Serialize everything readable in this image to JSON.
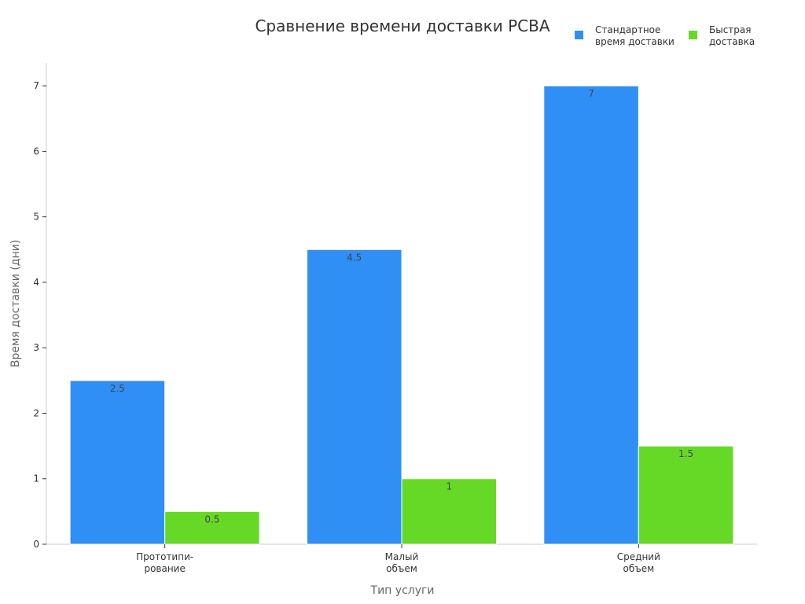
{
  "chart_data": {
    "type": "bar",
    "title": "Сравнение времени доставки PCBA",
    "xlabel": "Тип услуги",
    "ylabel": "Время доставки (дни)",
    "categories": [
      [
        "Прототипи-",
        "рование"
      ],
      [
        "Малый",
        "объем"
      ],
      [
        "Средний",
        "объем"
      ]
    ],
    "series": [
      {
        "name": [
          "Стандартное",
          "время доставки"
        ],
        "values": [
          2.5,
          4.5,
          7
        ],
        "color": "#2f8ff5"
      },
      {
        "name": [
          "Быстрая",
          "доставка"
        ],
        "values": [
          0.5,
          1,
          1.5
        ],
        "color": "#66d926"
      }
    ],
    "ylim": [
      0,
      7.35
    ],
    "yticks": [
      0,
      1,
      2,
      3,
      4,
      5,
      6,
      7
    ],
    "legend_position": "top-right",
    "grid": false
  }
}
